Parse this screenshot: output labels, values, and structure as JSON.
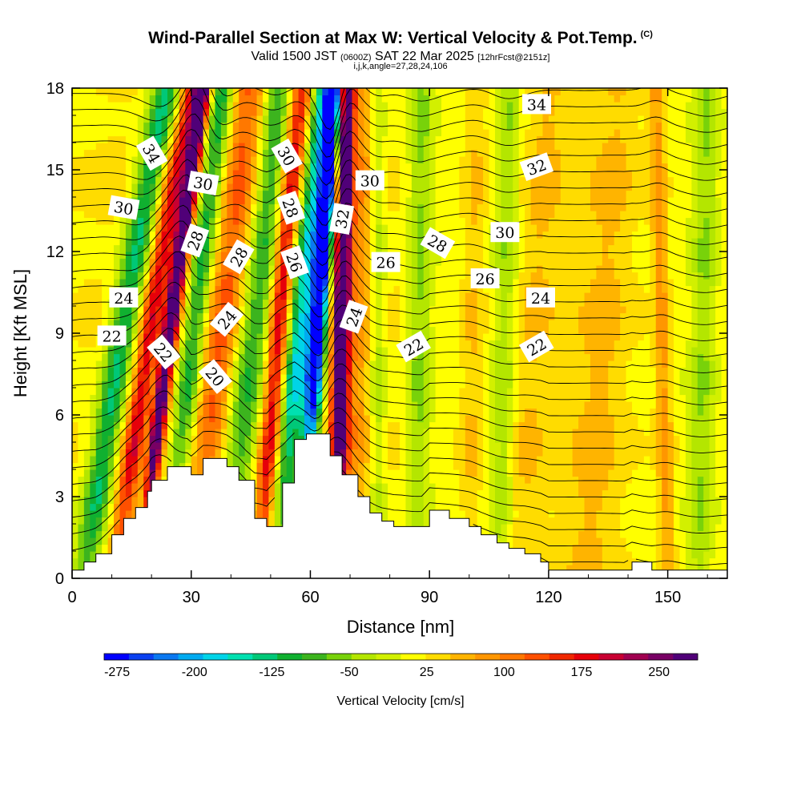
{
  "header": {
    "title": "Wind-Parallel Section at Max W: Vertical Velocity & Pot.Temp.",
    "copyright": "(C)",
    "valid_prefix": "Valid 1500 JST",
    "valid_utc": "(0600Z)",
    "valid_date": "SAT 22 Mar 2025",
    "forecast": "[12hrFcst@2151z]",
    "indices": "i,j,k,angle=27,28,24,106"
  },
  "chart_data": {
    "type": "heatmap",
    "xlabel": "Distance [nm]",
    "ylabel": "Height [Kft MSL]",
    "xlim": [
      0,
      165
    ],
    "ylim": [
      0,
      18
    ],
    "xticks": [
      0,
      30,
      60,
      90,
      120,
      150
    ],
    "yticks": [
      0,
      3,
      6,
      9,
      12,
      15,
      18
    ],
    "colorbar": {
      "title": "Vertical Velocity [cm/s]",
      "range": [
        -287.5,
        287.5
      ],
      "tick_values": [
        -275,
        -200,
        -125,
        -50,
        25,
        100,
        175,
        250
      ],
      "tick_labels": [
        "-275",
        "-200",
        "-125",
        "-50",
        "25",
        "100",
        "175",
        "250"
      ],
      "colors": [
        "#0000ff",
        "#0a40f0",
        "#0a78f0",
        "#00aaf0",
        "#00d4e8",
        "#00e0b0",
        "#00c878",
        "#10b030",
        "#3cb41e",
        "#78d20a",
        "#b4e600",
        "#d2f000",
        "#ffff00",
        "#ffdc00",
        "#ffb400",
        "#ff9600",
        "#ff7800",
        "#ff5000",
        "#f02800",
        "#e6000a",
        "#c80032",
        "#a00050",
        "#780064",
        "#500078"
      ]
    },
    "terrain": {
      "x": [
        0,
        3,
        6,
        10,
        13,
        16,
        19,
        20,
        24,
        29,
        30,
        33,
        39,
        42,
        46,
        49,
        53,
        56,
        59,
        65,
        68,
        72,
        75,
        78,
        81,
        88,
        90,
        95,
        100,
        103,
        107,
        110,
        114,
        118,
        120,
        139,
        141,
        146,
        148
      ],
      "y": [
        0.3,
        0.6,
        0.9,
        1.6,
        2.2,
        2.6,
        3.2,
        3.6,
        4.1,
        4.1,
        3.8,
        4.4,
        4.1,
        3.6,
        2.2,
        1.9,
        3.5,
        5.1,
        5.3,
        4.5,
        3.8,
        3.0,
        2.4,
        2.1,
        1.9,
        1.9,
        2.5,
        2.2,
        1.9,
        1.6,
        1.3,
        1.1,
        0.9,
        0.6,
        0.3,
        0.3,
        0.6,
        0.3,
        0.3
      ]
    },
    "w_bands": [
      {
        "x0": 4,
        "x1": 24,
        "w": -150,
        "width": 4
      },
      {
        "x0": 13,
        "x1": 30,
        "w": 160,
        "width": 3
      },
      {
        "x0": 20,
        "x1": 33,
        "w": 300,
        "width": 2
      },
      {
        "x0": 27,
        "x1": 38,
        "w": -130,
        "width": 3
      },
      {
        "x0": 34,
        "x1": 45,
        "w": 120,
        "width": 5
      },
      {
        "x0": 41,
        "x1": 52,
        "w": -120,
        "width": 4
      },
      {
        "x0": 48,
        "x1": 58,
        "w": 180,
        "width": 3
      },
      {
        "x0": 55,
        "x1": 64,
        "w": -200,
        "width": 4
      },
      {
        "x0": 60,
        "x1": 66,
        "w": -280,
        "width": 2
      },
      {
        "x0": 67,
        "x1": 69,
        "w": 300,
        "width": 2
      },
      {
        "x0": 70,
        "x1": 73,
        "w": 60,
        "width": 4
      },
      {
        "x0": 77,
        "x1": 77,
        "w": -60,
        "width": 2
      },
      {
        "x0": 87,
        "x1": 88,
        "w": -70,
        "width": 3
      },
      {
        "x0": 100,
        "x1": 102,
        "w": 40,
        "width": 3
      },
      {
        "x0": 108,
        "x1": 110,
        "w": -60,
        "width": 3
      },
      {
        "x0": 112,
        "x1": 120,
        "w": 30,
        "width": 5
      },
      {
        "x0": 130,
        "x1": 138,
        "w": 30,
        "width": 6
      },
      {
        "x0": 150,
        "x1": 147,
        "w": 70,
        "width": 2
      },
      {
        "x0": 158,
        "x1": 160,
        "w": -60,
        "width": 3
      }
    ],
    "theta_labels": [
      {
        "text": "34",
        "x": 20,
        "y": 15.6,
        "rot": 60
      },
      {
        "text": "30",
        "x": 13,
        "y": 13.6,
        "rot": 10
      },
      {
        "text": "24",
        "x": 13,
        "y": 10.3,
        "rot": 0
      },
      {
        "text": "22",
        "x": 10,
        "y": 8.9,
        "rot": 0
      },
      {
        "text": "22",
        "x": 23,
        "y": 8.3,
        "rot": 50
      },
      {
        "text": "30",
        "x": 33,
        "y": 14.5,
        "rot": 10
      },
      {
        "text": "28",
        "x": 31,
        "y": 12.4,
        "rot": -70
      },
      {
        "text": "28",
        "x": 42,
        "y": 11.8,
        "rot": -60
      },
      {
        "text": "24",
        "x": 39,
        "y": 9.5,
        "rot": -50
      },
      {
        "text": "20",
        "x": 36,
        "y": 7.4,
        "rot": 50
      },
      {
        "text": "30",
        "x": 54,
        "y": 15.5,
        "rot": 60
      },
      {
        "text": "28",
        "x": 55,
        "y": 13.6,
        "rot": 70
      },
      {
        "text": "26",
        "x": 56,
        "y": 11.6,
        "rot": 70
      },
      {
        "text": "32",
        "x": 68,
        "y": 13.2,
        "rot": -80
      },
      {
        "text": "30",
        "x": 75,
        "y": 14.6,
        "rot": 0
      },
      {
        "text": "26",
        "x": 79,
        "y": 11.6,
        "rot": 0
      },
      {
        "text": "24",
        "x": 71,
        "y": 9.6,
        "rot": -70
      },
      {
        "text": "22",
        "x": 86,
        "y": 8.5,
        "rot": -30
      },
      {
        "text": "28",
        "x": 92,
        "y": 12.3,
        "rot": 30
      },
      {
        "text": "30",
        "x": 109,
        "y": 12.7,
        "rot": 0
      },
      {
        "text": "26",
        "x": 104,
        "y": 11.0,
        "rot": 0
      },
      {
        "text": "24",
        "x": 118,
        "y": 10.3,
        "rot": 0
      },
      {
        "text": "22",
        "x": 117,
        "y": 8.5,
        "rot": -30
      },
      {
        "text": "34",
        "x": 117,
        "y": 17.4,
        "rot": 0
      },
      {
        "text": "32",
        "x": 117,
        "y": 15.1,
        "rot": -20
      }
    ]
  }
}
